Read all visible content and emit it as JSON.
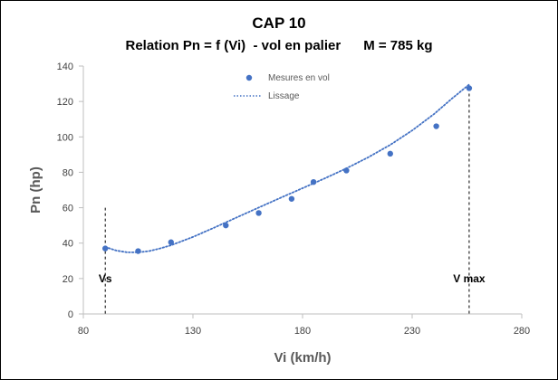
{
  "chart_data": {
    "type": "scatter",
    "title": "CAP 10",
    "subtitle": "Relation Pn = f (Vi)  - vol en palier      M = 785 kg",
    "xlabel": "Vi (km/h)",
    "ylabel": "Pn (hp)",
    "xlim": [
      80,
      280
    ],
    "ylim": [
      0,
      140
    ],
    "xticks": [
      80,
      130,
      180,
      230,
      280
    ],
    "yticks": [
      0,
      20,
      40,
      60,
      80,
      100,
      120,
      140
    ],
    "grid": false,
    "legend_position": "top-center",
    "series": [
      {
        "name": "Mesures en vol",
        "style": "markers",
        "color": "#4472C4",
        "x": [
          90,
          105,
          120,
          145,
          160,
          175,
          185,
          200,
          220,
          241,
          256
        ],
        "y": [
          37,
          35.5,
          40.5,
          50,
          57,
          65,
          74.5,
          81,
          90.5,
          106,
          127.5
        ]
      },
      {
        "name": "Lissage",
        "style": "dotted-line",
        "color": "#4472C4",
        "x": [
          90,
          95,
          100,
          105,
          110,
          115,
          120,
          130,
          140,
          150,
          160,
          170,
          180,
          190,
          200,
          210,
          220,
          230,
          240,
          248,
          256
        ],
        "y": [
          37.8,
          35.8,
          34.8,
          34.8,
          35.5,
          37.0,
          38.8,
          43.5,
          48.9,
          54.5,
          60.1,
          65.6,
          71.0,
          76.5,
          82.2,
          88.5,
          95.5,
          103.6,
          112.9,
          121.5,
          129.6
        ]
      }
    ],
    "annotations": [
      {
        "text": "Vs",
        "x": 90
      },
      {
        "text": "V max",
        "x": 256
      }
    ]
  }
}
